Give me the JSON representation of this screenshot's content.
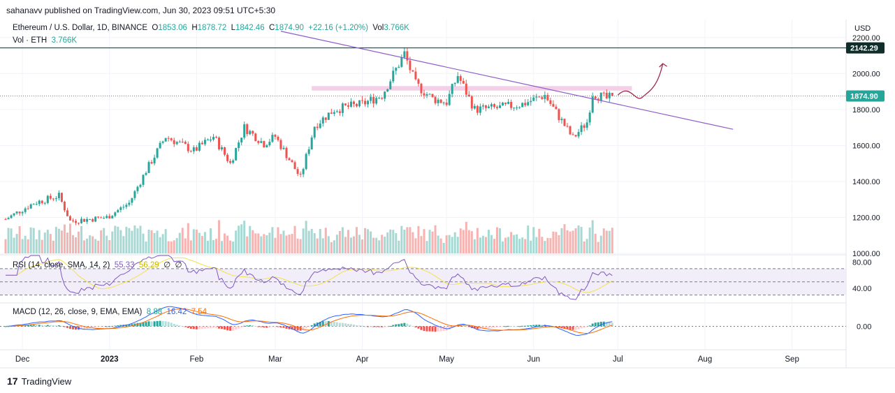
{
  "header": {
    "publisher_line": "sahanavv published on TradingView.com, Jun 30, 2023 09:51 UTC+5:30"
  },
  "legend": {
    "symbol": "Ethereum / U.S. Dollar, 1D, BINANCE",
    "open_label": "O",
    "open": "1853.06",
    "high_label": "H",
    "high": "1878.72",
    "low_label": "L",
    "low": "1842.46",
    "close_label": "C",
    "close": "1874.90",
    "change": "+22.16 (+1.20%)",
    "vol_label": "Vol",
    "vol": "3.766K",
    "vol_series": "Vol · ETH",
    "vol_series_value": "3.766K"
  },
  "rsi_legend": {
    "label": "RSI (14, close, SMA, 14, 2)",
    "rsi": "55.33",
    "sma": "56.29",
    "extra1": "∅",
    "extra2": "∅"
  },
  "macd_legend": {
    "label": "MACD (12, 26, close, 9, EMA, EMA)",
    "hist": "8.88",
    "macd": "16.42",
    "signal": "7.54"
  },
  "price_axis": {
    "currency": "USD",
    "ticks": [
      "2200.00",
      "2000.00",
      "1800.00",
      "1600.00",
      "1400.00",
      "1200.00",
      "1000.00"
    ],
    "resistance_label": "2142.29",
    "last_price_label": "1874.90"
  },
  "rsi_axis": {
    "ticks": [
      "80.00",
      "40.00"
    ]
  },
  "macd_axis": {
    "ticks": [
      "0.00"
    ]
  },
  "time_axis": {
    "ticks": [
      "Dec",
      "2023",
      "Feb",
      "Mar",
      "Apr",
      "May",
      "Jun",
      "Jul",
      "Aug",
      "Sep"
    ]
  },
  "footer": {
    "brand": "TradingView"
  },
  "colors": {
    "up": "#26a69a",
    "down": "#ef5350",
    "trendline": "#8e5cc9",
    "resistance": "#0f2e2b",
    "zone": "#f3c6e4",
    "arrow": "#9e2a4a",
    "rsi": "#7e57c2",
    "rsi_sma": "#f4e04d",
    "macd": "#2962ff",
    "signal": "#ff6d00"
  },
  "chart_data": {
    "type": "candlestick",
    "symbol": "ETHUSD",
    "interval": "1D",
    "x_range": [
      "2022-11-25",
      "2023-09-20"
    ],
    "y_range": [
      1000,
      2300
    ],
    "last_close": 1874.9,
    "resistance_level": 2142.29,
    "zone": [
      1905,
      1930
    ],
    "trendline": {
      "start": [
        "2023-03-03",
        2235
      ],
      "end": [
        "2023-08-11",
        1690
      ]
    },
    "projection_arrow": {
      "from": [
        "2023-07-01",
        1880
      ],
      "to": [
        "2023-07-17",
        2055
      ]
    },
    "waypoints": [
      [
        "2022-11-25",
        1190
      ],
      [
        "2022-12-05",
        1280
      ],
      [
        "2022-12-14",
        1320
      ],
      [
        "2022-12-18",
        1180
      ],
      [
        "2022-12-31",
        1200
      ],
      [
        "2023-01-08",
        1280
      ],
      [
        "2023-01-14",
        1460
      ],
      [
        "2023-01-21",
        1650
      ],
      [
        "2023-01-31",
        1570
      ],
      [
        "2023-02-07",
        1650
      ],
      [
        "2023-02-13",
        1500
      ],
      [
        "2023-02-18",
        1700
      ],
      [
        "2023-02-25",
        1610
      ],
      [
        "2023-03-01",
        1650
      ],
      [
        "2023-03-10",
        1420
      ],
      [
        "2023-03-15",
        1710
      ],
      [
        "2023-03-22",
        1800
      ],
      [
        "2023-04-01",
        1830
      ],
      [
        "2023-04-08",
        1880
      ],
      [
        "2023-04-16",
        2110
      ],
      [
        "2023-04-20",
        1940
      ],
      [
        "2023-04-26",
        1860
      ],
      [
        "2023-05-01",
        1840
      ],
      [
        "2023-05-05",
        1990
      ],
      [
        "2023-05-11",
        1800
      ],
      [
        "2023-05-20",
        1810
      ],
      [
        "2023-05-28",
        1830
      ],
      [
        "2023-06-05",
        1880
      ],
      [
        "2023-06-10",
        1760
      ],
      [
        "2023-06-15",
        1640
      ],
      [
        "2023-06-20",
        1730
      ],
      [
        "2023-06-22",
        1890
      ],
      [
        "2023-06-27",
        1860
      ],
      [
        "2023-06-29",
        1870
      ]
    ],
    "rsi_range": [
      20,
      90
    ],
    "macd_range": [
      -120,
      120
    ]
  }
}
